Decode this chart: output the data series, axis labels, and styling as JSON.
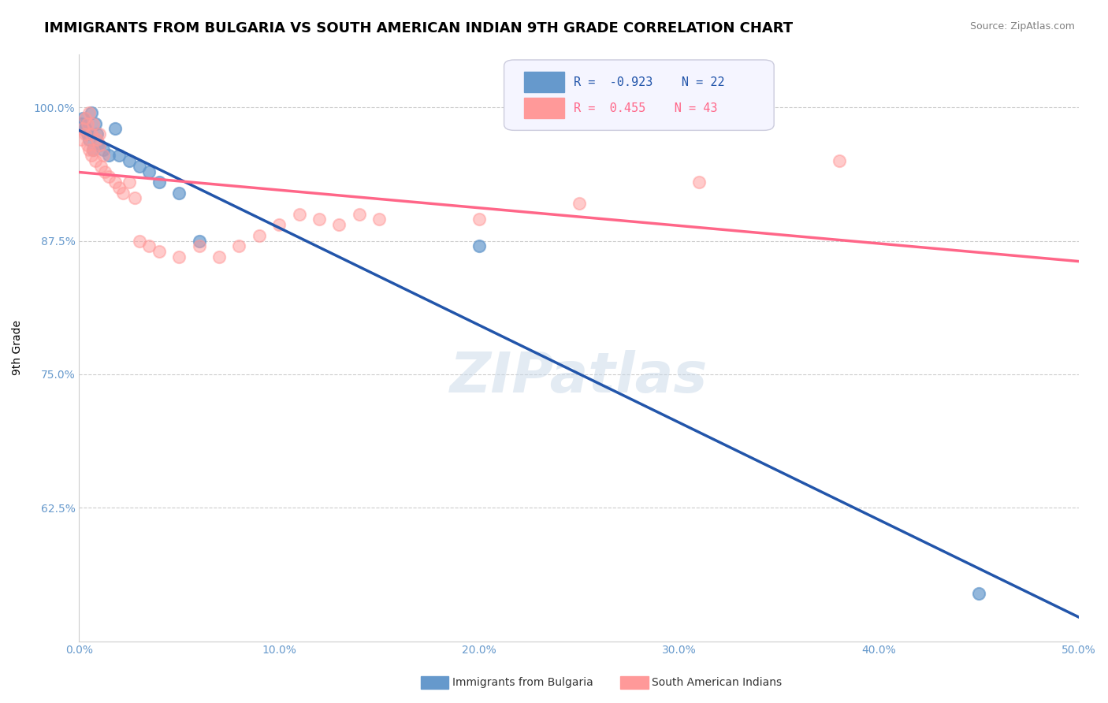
{
  "title": "IMMIGRANTS FROM BULGARIA VS SOUTH AMERICAN INDIAN 9TH GRADE CORRELATION CHART",
  "source_text": "Source: ZipAtlas.com",
  "xlabel": "",
  "ylabel": "9th Grade",
  "xlim": [
    0.0,
    0.5
  ],
  "ylim": [
    0.5,
    1.05
  ],
  "yticks": [
    0.625,
    0.75,
    0.875,
    1.0
  ],
  "ytick_labels": [
    "62.5%",
    "75.0%",
    "87.5%",
    "100.0%"
  ],
  "xticks": [
    0.0,
    0.1,
    0.2,
    0.3,
    0.4,
    0.5
  ],
  "xtick_labels": [
    "0.0%",
    "10.0%",
    "20.0%",
    "30.0%",
    "40.0%",
    "50.0%"
  ],
  "watermark": "ZIPatlas",
  "blue_R": -0.923,
  "blue_N": 22,
  "pink_R": 0.455,
  "pink_N": 43,
  "blue_color": "#6699CC",
  "pink_color": "#FF9999",
  "blue_line_color": "#2255AA",
  "pink_line_color": "#FF6688",
  "blue_scatter_x": [
    0.001,
    0.002,
    0.003,
    0.004,
    0.005,
    0.006,
    0.007,
    0.008,
    0.009,
    0.01,
    0.012,
    0.015,
    0.018,
    0.02,
    0.025,
    0.03,
    0.035,
    0.04,
    0.05,
    0.06,
    0.2,
    0.45
  ],
  "blue_scatter_y": [
    0.985,
    0.99,
    0.98,
    0.975,
    0.97,
    0.995,
    0.96,
    0.985,
    0.975,
    0.965,
    0.96,
    0.955,
    0.98,
    0.955,
    0.95,
    0.945,
    0.94,
    0.93,
    0.92,
    0.875,
    0.87,
    0.545
  ],
  "pink_scatter_x": [
    0.001,
    0.002,
    0.003,
    0.003,
    0.004,
    0.004,
    0.005,
    0.005,
    0.006,
    0.006,
    0.007,
    0.007,
    0.008,
    0.009,
    0.01,
    0.01,
    0.011,
    0.012,
    0.013,
    0.015,
    0.018,
    0.02,
    0.022,
    0.025,
    0.028,
    0.03,
    0.035,
    0.04,
    0.05,
    0.06,
    0.07,
    0.08,
    0.09,
    0.1,
    0.11,
    0.12,
    0.13,
    0.14,
    0.15,
    0.2,
    0.25,
    0.31,
    0.38
  ],
  "pink_scatter_y": [
    0.97,
    0.98,
    0.99,
    0.975,
    0.985,
    0.965,
    0.995,
    0.96,
    0.975,
    0.955,
    0.985,
    0.96,
    0.95,
    0.97,
    0.965,
    0.975,
    0.945,
    0.955,
    0.94,
    0.935,
    0.93,
    0.925,
    0.92,
    0.93,
    0.915,
    0.875,
    0.87,
    0.865,
    0.86,
    0.87,
    0.86,
    0.87,
    0.88,
    0.89,
    0.9,
    0.895,
    0.89,
    0.9,
    0.895,
    0.895,
    0.91,
    0.93,
    0.95
  ],
  "legend_box_color": "#F0F0F8",
  "grid_color": "#CCCCCC",
  "tick_color": "#6699CC",
  "axis_color": "#CCCCCC",
  "title_fontsize": 13,
  "label_fontsize": 10,
  "tick_fontsize": 10,
  "ylabel_fontsize": 10,
  "legend_fontsize": 11
}
